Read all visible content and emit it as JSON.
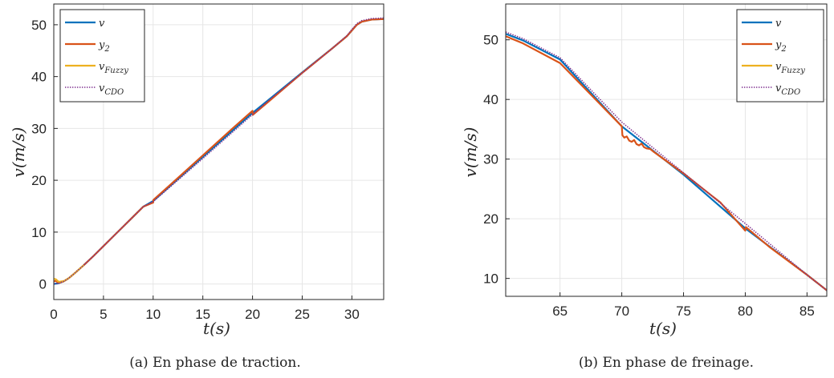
{
  "colors": {
    "v": "#0072BD",
    "y2": "#D95319",
    "v_fuzzy": "#EDB120",
    "v_cdo": "#7E2F8E",
    "grid": "#e6e6e6",
    "axis": "#262626"
  },
  "chart_data": [
    {
      "type": "line",
      "caption": "(a) En phase de traction.",
      "xlabel": {
        "base": "t",
        "paren": "(s)"
      },
      "ylabel": {
        "base": "v",
        "paren": "(m/s)"
      },
      "xlim": [
        0,
        33.2
      ],
      "ylim": [
        -3,
        54
      ],
      "xticks": [
        0,
        5,
        10,
        15,
        20,
        25,
        30
      ],
      "yticks": [
        0,
        10,
        20,
        30,
        40,
        50
      ],
      "grid": true,
      "legend_position": "top-left",
      "legend": [
        {
          "key": "v",
          "base": "v",
          "sub": ""
        },
        {
          "key": "y2",
          "base": "y",
          "sub": "2"
        },
        {
          "key": "v_fuzzy",
          "base": "v",
          "sub": "Fuzzy"
        },
        {
          "key": "v_cdo",
          "base": "v",
          "sub": "CDO"
        }
      ],
      "series": [
        {
          "key": "v",
          "style": "solid",
          "x": [
            0,
            0.5,
            1,
            1.5,
            2,
            3,
            4,
            5,
            6,
            7,
            8,
            9,
            10,
            12,
            15,
            18,
            20,
            22,
            25,
            28,
            29.5,
            30,
            30.5,
            31,
            32,
            33.2
          ],
          "y": [
            0,
            0.15,
            0.5,
            1.1,
            1.9,
            3.6,
            5.4,
            7.3,
            9.2,
            11.1,
            13.0,
            14.9,
            16.0,
            19.4,
            24.5,
            29.6,
            33.0,
            36.1,
            40.8,
            45.4,
            47.8,
            48.9,
            50.0,
            50.6,
            51.0,
            51.1
          ]
        },
        {
          "key": "y2",
          "style": "solid",
          "x": [
            0,
            0.2,
            0.5,
            1,
            1.5,
            2,
            3,
            4,
            5,
            6,
            7,
            8,
            9,
            10,
            10.02,
            12,
            15,
            18,
            20,
            20.02,
            22,
            25,
            28,
            29.5,
            30,
            30.5,
            31,
            32,
            33.2
          ],
          "y": [
            0.5,
            0.6,
            0.2,
            0.5,
            1.1,
            1.9,
            3.6,
            5.4,
            7.3,
            9.2,
            11.1,
            13.0,
            14.9,
            15.7,
            16.2,
            19.6,
            24.8,
            30.0,
            33.4,
            32.6,
            35.8,
            40.7,
            45.4,
            47.8,
            48.9,
            50.0,
            50.6,
            51.0,
            51.1
          ]
        },
        {
          "key": "v_fuzzy",
          "style": "solid",
          "x": [
            0,
            0.2,
            0.5,
            1,
            1.5,
            2,
            3
          ],
          "y": [
            1.0,
            0.9,
            0.4,
            0.55,
            1.1,
            1.9,
            3.6
          ]
        },
        {
          "key": "v_cdo",
          "style": "dotted",
          "x": [
            0,
            0.5,
            1,
            1.5,
            2,
            3,
            4,
            5,
            6,
            7,
            8,
            9,
            10,
            12,
            15,
            18,
            20,
            22,
            25,
            28,
            29.5,
            30,
            30.5,
            31,
            32,
            33.2
          ],
          "y": [
            0,
            0.15,
            0.5,
            1.1,
            1.9,
            3.6,
            5.4,
            7.3,
            9.2,
            11.1,
            13.0,
            14.9,
            15.9,
            19.2,
            24.2,
            29.3,
            32.7,
            36.0,
            40.7,
            45.4,
            47.9,
            49.1,
            50.2,
            50.8,
            51.2,
            51.3
          ]
        }
      ]
    },
    {
      "type": "line",
      "caption": "(b) En phase de freinage.",
      "xlabel": {
        "base": "t",
        "paren": "(s)"
      },
      "ylabel": {
        "base": "v",
        "paren": "(m/s)"
      },
      "xlim": [
        60.6,
        86.6
      ],
      "ylim": [
        7,
        56
      ],
      "xticks": [
        65,
        70,
        75,
        80,
        85
      ],
      "yticks": [
        10,
        20,
        30,
        40,
        50
      ],
      "grid": true,
      "legend_position": "top-right",
      "legend": [
        {
          "key": "v",
          "base": "v",
          "sub": ""
        },
        {
          "key": "y2",
          "base": "y",
          "sub": "2"
        },
        {
          "key": "v_fuzzy",
          "base": "v",
          "sub": "Fuzzy"
        },
        {
          "key": "v_cdo",
          "base": "v",
          "sub": "CDO"
        }
      ],
      "series": [
        {
          "key": "v",
          "style": "solid",
          "x": [
            60.6,
            62,
            65,
            70,
            75,
            80,
            85,
            86.6
          ],
          "y": [
            51.0,
            49.9,
            46.7,
            35.5,
            27.4,
            18.4,
            10.6,
            8.0
          ]
        },
        {
          "key": "y2",
          "style": "solid",
          "x": [
            60.6,
            62,
            65,
            70,
            70.05,
            70.2,
            70.4,
            70.6,
            70.8,
            71.0,
            71.2,
            71.4,
            71.6,
            71.8,
            72.0,
            72.3,
            72.6,
            73,
            75,
            78,
            80,
            80.05,
            82,
            85,
            86.6
          ],
          "y": [
            50.6,
            49.4,
            46.1,
            35.5,
            34.0,
            33.6,
            33.8,
            33.1,
            32.9,
            33.2,
            32.5,
            32.3,
            32.6,
            32.0,
            31.8,
            31.7,
            31.2,
            30.6,
            27.6,
            22.7,
            18.0,
            18.6,
            15.2,
            10.6,
            8.0
          ]
        },
        {
          "key": "v_cdo",
          "style": "dotted",
          "x": [
            60.6,
            62,
            65,
            70,
            75,
            80,
            85,
            86.6
          ],
          "y": [
            51.3,
            50.2,
            47.0,
            36.2,
            27.7,
            19.2,
            10.6,
            8.0
          ]
        }
      ]
    }
  ]
}
